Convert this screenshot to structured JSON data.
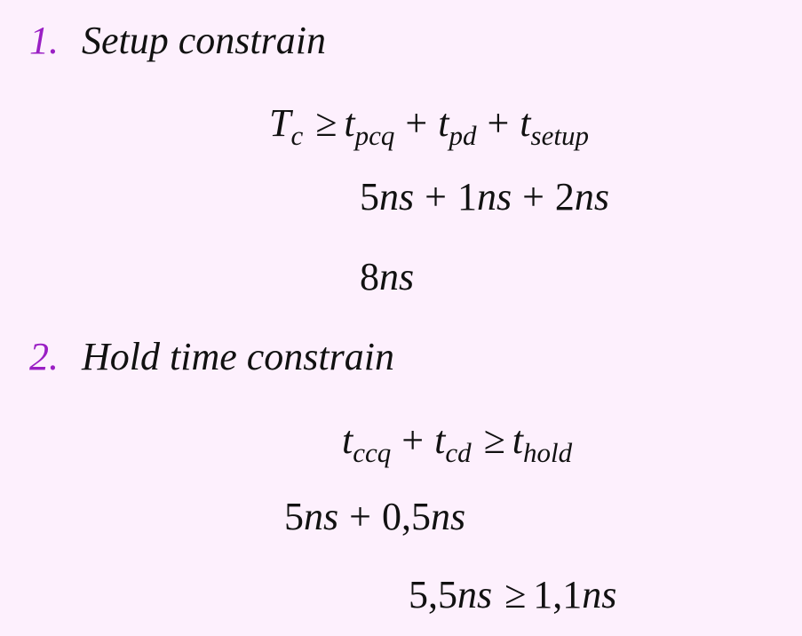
{
  "colors": {
    "background": "#fdf0fd",
    "number_accent": "#9a1fc4",
    "text": "#111111"
  },
  "sections": [
    {
      "number": "1.",
      "title": "Setup constrain",
      "equations": [
        {
          "lhs": "T",
          "lhs_sub": "c",
          "rel": "≥",
          "terms": [
            {
              "base": "t",
              "sub": "pcq"
            },
            {
              "op": "+",
              "base": "t",
              "sub": "pd"
            },
            {
              "op": "+",
              "base": "t",
              "sub": "setup"
            }
          ]
        },
        {
          "terms": [
            {
              "num": "5",
              "unit": "ns"
            },
            {
              "op": "+",
              "num": "1",
              "unit": "ns"
            },
            {
              "op": "+",
              "num": "2",
              "unit": "ns"
            }
          ]
        },
        {
          "terms": [
            {
              "num": "8",
              "unit": "ns"
            }
          ]
        }
      ]
    },
    {
      "number": "2.",
      "title": "Hold time constrain",
      "equations": [
        {
          "terms": [
            {
              "base": "t",
              "sub": "ccq"
            },
            {
              "op": "+",
              "base": "t",
              "sub": "cd"
            }
          ],
          "rel": "≥",
          "rhs": {
            "base": "t",
            "sub": "hold"
          }
        },
        {
          "terms": [
            {
              "num": "5",
              "unit": "ns"
            },
            {
              "op": "+",
              "num": "0,5",
              "unit": "ns"
            }
          ]
        },
        {
          "lhs": {
            "num": "5,5",
            "unit": "ns"
          },
          "rel": "≥",
          "rhs": {
            "num": "1,1",
            "unit": "ns"
          }
        }
      ]
    }
  ]
}
